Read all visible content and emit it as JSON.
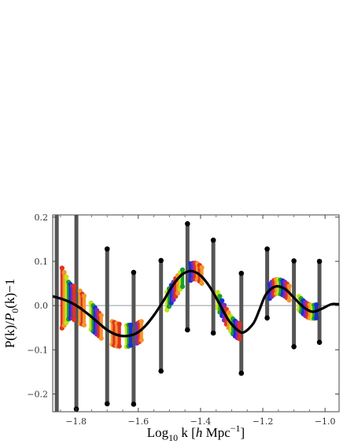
{
  "chart_data": {
    "type": "scatter",
    "xlabel": {
      "base": "Log",
      "sub": "10",
      "rest_pre": " k [",
      "h": "h",
      "unit": " Mpc",
      "sup": "−1",
      "close": "]"
    },
    "ylabel": {
      "pk": "P(k)/",
      "p0": "P",
      "sub": "0",
      "rest": "(k)−1"
    },
    "xlim": [
      -1.875,
      -0.955
    ],
    "ylim": [
      -0.24,
      0.205
    ],
    "x_ticks": [
      -1.8,
      -1.6,
      -1.4,
      -1.2,
      -1.0
    ],
    "x_tick_labels": [
      "−1.8",
      "−1.6",
      "−1.4",
      "−1.2",
      "−1.0"
    ],
    "y_ticks": [
      0.2,
      0.1,
      0.0,
      -0.1,
      -0.2
    ],
    "y_tick_labels": [
      "0.2",
      "0.1",
      "0.0",
      "−0.1",
      "−0.2"
    ],
    "zero_line": true,
    "grid": false,
    "model_curve": {
      "color": "#000000",
      "points": [
        [
          -1.875,
          0.021
        ],
        [
          -1.85,
          0.016
        ],
        [
          -1.82,
          0.008
        ],
        [
          -1.79,
          -0.004
        ],
        [
          -1.76,
          -0.02
        ],
        [
          -1.73,
          -0.038
        ],
        [
          -1.7,
          -0.055
        ],
        [
          -1.67,
          -0.066
        ],
        [
          -1.64,
          -0.069
        ],
        [
          -1.61,
          -0.064
        ],
        [
          -1.58,
          -0.048
        ],
        [
          -1.55,
          -0.022
        ],
        [
          -1.52,
          0.01
        ],
        [
          -1.49,
          0.045
        ],
        [
          -1.46,
          0.07
        ],
        [
          -1.43,
          0.078
        ],
        [
          -1.4,
          0.068
        ],
        [
          -1.37,
          0.042
        ],
        [
          -1.34,
          0.005
        ],
        [
          -1.31,
          -0.033
        ],
        [
          -1.28,
          -0.056
        ],
        [
          -1.26,
          -0.06
        ],
        [
          -1.23,
          -0.04
        ],
        [
          -1.21,
          -0.008
        ],
        [
          -1.19,
          0.025
        ],
        [
          -1.16,
          0.043
        ],
        [
          -1.13,
          0.038
        ],
        [
          -1.1,
          0.018
        ],
        [
          -1.07,
          -0.003
        ],
        [
          -1.04,
          -0.014
        ],
        [
          -1.01,
          -0.007
        ],
        [
          -0.98,
          0.003
        ],
        [
          -0.955,
          0.003
        ]
      ]
    },
    "black_error_bars": {
      "color": "#555555",
      "point_color": "#000000",
      "points": [
        {
          "x": -1.862,
          "low": -0.25,
          "high": 0.25,
          "show_low": false,
          "show_high": false
        },
        {
          "x": -1.799,
          "low": -0.234,
          "high": 0.25,
          "show_low": true,
          "show_high": false
        },
        {
          "x": -1.7,
          "low": -0.222,
          "high": 0.128,
          "show_low": true,
          "show_high": true
        },
        {
          "x": -1.615,
          "low": -0.223,
          "high": 0.075,
          "show_low": true,
          "show_high": true
        },
        {
          "x": -1.527,
          "low": -0.148,
          "high": 0.102,
          "show_low": true,
          "show_high": true
        },
        {
          "x": -1.442,
          "low": -0.055,
          "high": 0.185,
          "show_low": true,
          "show_high": true
        },
        {
          "x": -1.359,
          "low": -0.062,
          "high": 0.148,
          "show_low": true,
          "show_high": true
        },
        {
          "x": -1.269,
          "low": -0.153,
          "high": 0.073,
          "show_low": true,
          "show_high": true
        },
        {
          "x": -1.186,
          "low": -0.028,
          "high": 0.128,
          "show_low": true,
          "show_high": true
        },
        {
          "x": -1.1,
          "low": -0.093,
          "high": 0.101,
          "show_low": true,
          "show_high": true
        },
        {
          "x": -1.018,
          "low": -0.083,
          "high": 0.1,
          "show_low": true,
          "show_high": true
        }
      ]
    },
    "colored_bars": {
      "colors": [
        "#e0331f",
        "#f2962e",
        "#c7e01c",
        "#16a030",
        "#1b2fcf",
        "#7b2cbf"
      ],
      "groups": [
        [
          {
            "x": -1.845,
            "y": 0.017,
            "err": 0.068,
            "c": 0
          },
          {
            "x": -1.838,
            "y": 0.015,
            "err": 0.06,
            "c": 1
          },
          {
            "x": -1.831,
            "y": 0.013,
            "err": 0.052,
            "c": 2
          },
          {
            "x": -1.824,
            "y": 0.011,
            "err": 0.042,
            "c": 3
          },
          {
            "x": -1.818,
            "y": 0.01,
            "err": 0.038,
            "c": 4
          },
          {
            "x": -1.812,
            "y": 0.008,
            "err": 0.036,
            "c": 5
          },
          {
            "x": -1.806,
            "y": 0.006,
            "err": 0.038,
            "c": 0
          },
          {
            "x": -1.787,
            "y": -0.004,
            "err": 0.037,
            "c": 1
          },
          {
            "x": -1.78,
            "y": -0.008,
            "err": 0.034,
            "c": 0
          },
          {
            "x": -1.774,
            "y": -0.011,
            "err": 0.033,
            "c": 1
          }
        ],
        [
          {
            "x": -1.752,
            "y": -0.024,
            "err": 0.03,
            "c": 2
          },
          {
            "x": -1.745,
            "y": -0.029,
            "err": 0.029,
            "c": 3
          },
          {
            "x": -1.739,
            "y": -0.033,
            "err": 0.028,
            "c": 4
          },
          {
            "x": -1.733,
            "y": -0.038,
            "err": 0.027,
            "c": 5
          },
          {
            "x": -1.726,
            "y": -0.043,
            "err": 0.026,
            "c": 0
          },
          {
            "x": -1.719,
            "y": -0.048,
            "err": 0.026,
            "c": 1
          },
          {
            "x": -1.684,
            "y": -0.062,
            "err": 0.026,
            "c": 1
          },
          {
            "x": -1.677,
            "y": -0.064,
            "err": 0.026,
            "c": 0
          },
          {
            "x": -1.669,
            "y": -0.066,
            "err": 0.026,
            "c": 1
          },
          {
            "x": -1.661,
            "y": -0.067,
            "err": 0.025,
            "c": 0
          }
        ],
        [
          {
            "x": -1.638,
            "y": -0.069,
            "err": 0.024,
            "c": 2
          },
          {
            "x": -1.631,
            "y": -0.068,
            "err": 0.024,
            "c": 3
          },
          {
            "x": -1.625,
            "y": -0.067,
            "err": 0.023,
            "c": 4
          },
          {
            "x": -1.604,
            "y": -0.063,
            "err": 0.022,
            "c": 5
          },
          {
            "x": -1.597,
            "y": -0.06,
            "err": 0.022,
            "c": 0
          },
          {
            "x": -1.59,
            "y": -0.057,
            "err": 0.021,
            "c": 1
          }
        ],
        [
          {
            "x": -1.508,
            "y": 0.01,
            "err": 0.02,
            "c": 2
          },
          {
            "x": -1.501,
            "y": 0.018,
            "err": 0.02,
            "c": 3
          },
          {
            "x": -1.494,
            "y": 0.026,
            "err": 0.02,
            "c": 4
          },
          {
            "x": -1.487,
            "y": 0.033,
            "err": 0.02,
            "c": 5
          },
          {
            "x": -1.48,
            "y": 0.041,
            "err": 0.02,
            "c": 0
          },
          {
            "x": -1.473,
            "y": 0.048,
            "err": 0.02,
            "c": 1
          },
          {
            "x": -1.465,
            "y": 0.056,
            "err": 0.019,
            "c": 2
          },
          {
            "x": -1.458,
            "y": 0.062,
            "err": 0.019,
            "c": 3
          },
          {
            "x": -1.432,
            "y": 0.076,
            "err": 0.019,
            "c": 4
          },
          {
            "x": -1.424,
            "y": 0.078,
            "err": 0.018,
            "c": 5
          },
          {
            "x": -1.417,
            "y": 0.078,
            "err": 0.018,
            "c": 0
          },
          {
            "x": -1.41,
            "y": 0.077,
            "err": 0.018,
            "c": 1
          },
          {
            "x": -1.403,
            "y": 0.073,
            "err": 0.018,
            "c": 0
          },
          {
            "x": -1.396,
            "y": 0.068,
            "err": 0.018,
            "c": 1
          }
        ],
        [
          {
            "x": -1.345,
            "y": 0.012,
            "err": 0.018,
            "c": 2
          },
          {
            "x": -1.338,
            "y": 0.003,
            "err": 0.018,
            "c": 3
          },
          {
            "x": -1.331,
            "y": -0.006,
            "err": 0.017,
            "c": 4
          },
          {
            "x": -1.324,
            "y": -0.016,
            "err": 0.017,
            "c": 5
          },
          {
            "x": -1.317,
            "y": -0.025,
            "err": 0.017,
            "c": 0
          },
          {
            "x": -1.31,
            "y": -0.033,
            "err": 0.017,
            "c": 1
          },
          {
            "x": -1.303,
            "y": -0.041,
            "err": 0.017,
            "c": 2
          },
          {
            "x": -1.296,
            "y": -0.047,
            "err": 0.017,
            "c": 3
          },
          {
            "x": -1.289,
            "y": -0.052,
            "err": 0.017,
            "c": 4
          },
          {
            "x": -1.282,
            "y": -0.056,
            "err": 0.017,
            "c": 5
          },
          {
            "x": -1.275,
            "y": -0.058,
            "err": 0.017,
            "c": 0
          }
        ],
        [
          {
            "x": -1.178,
            "y": 0.032,
            "err": 0.016,
            "c": 4
          },
          {
            "x": -1.171,
            "y": 0.037,
            "err": 0.016,
            "c": 5
          },
          {
            "x": -1.164,
            "y": 0.041,
            "err": 0.016,
            "c": 0
          },
          {
            "x": -1.157,
            "y": 0.043,
            "err": 0.016,
            "c": 1
          },
          {
            "x": -1.15,
            "y": 0.043,
            "err": 0.016,
            "c": 2
          },
          {
            "x": -1.143,
            "y": 0.042,
            "err": 0.016,
            "c": 3
          },
          {
            "x": -1.136,
            "y": 0.04,
            "err": 0.016,
            "c": 4
          },
          {
            "x": -1.129,
            "y": 0.037,
            "err": 0.016,
            "c": 5
          },
          {
            "x": -1.122,
            "y": 0.033,
            "err": 0.016,
            "c": 0
          },
          {
            "x": -1.115,
            "y": 0.028,
            "err": 0.016,
            "c": 1
          }
        ],
        [
          {
            "x": -1.084,
            "y": 0.006,
            "err": 0.015,
            "c": 2
          },
          {
            "x": -1.077,
            "y": 0.001,
            "err": 0.015,
            "c": 3
          },
          {
            "x": -1.07,
            "y": -0.004,
            "err": 0.015,
            "c": 4
          },
          {
            "x": -1.063,
            "y": -0.008,
            "err": 0.015,
            "c": 5
          },
          {
            "x": -1.056,
            "y": -0.011,
            "err": 0.015,
            "c": 0
          },
          {
            "x": -1.049,
            "y": -0.013,
            "err": 0.015,
            "c": 1
          },
          {
            "x": -1.042,
            "y": -0.014,
            "err": 0.015,
            "c": 2
          },
          {
            "x": -1.035,
            "y": -0.014,
            "err": 0.015,
            "c": 3
          },
          {
            "x": -1.028,
            "y": -0.013,
            "err": 0.015,
            "c": 4
          }
        ]
      ]
    }
  }
}
